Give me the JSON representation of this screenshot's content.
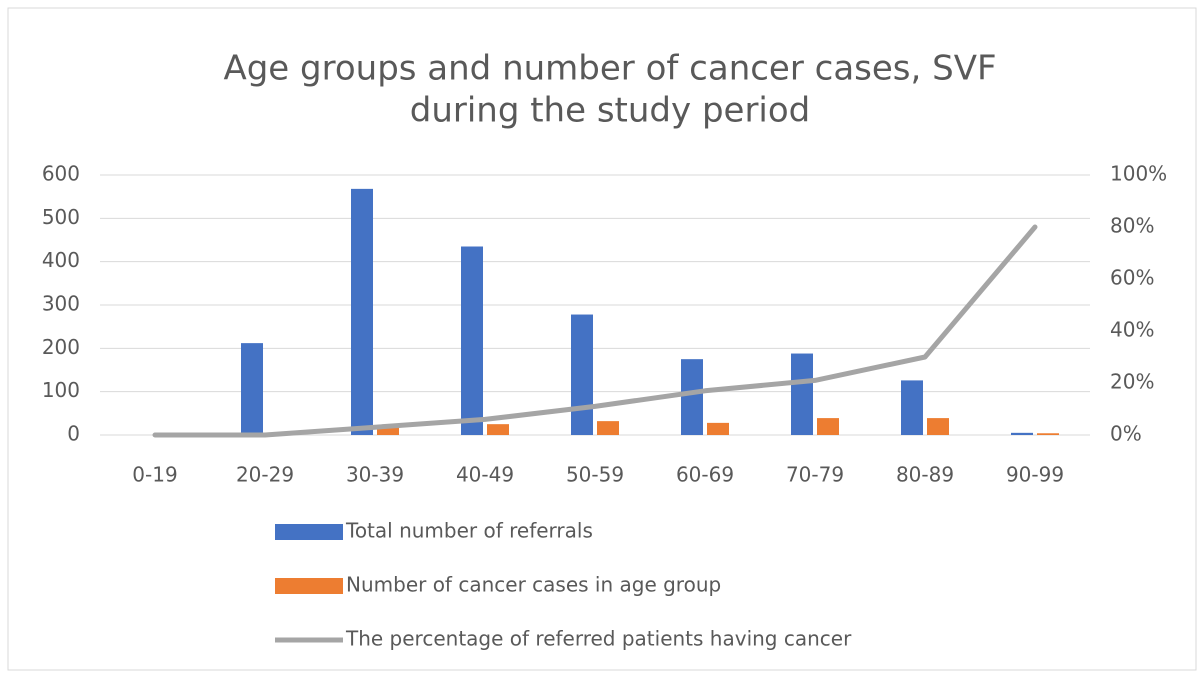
{
  "chart_data": {
    "type": "bar",
    "title": [
      "Age groups and number of cancer cases, SVF",
      "during the study period"
    ],
    "categories": [
      "0-19",
      "20-29",
      "30-39",
      "40-49",
      "50-59",
      "60-69",
      "70-79",
      "80-89",
      "90-99"
    ],
    "series": [
      {
        "name": "Total number of referrals",
        "color": "#4472c4",
        "type": "bar",
        "values": [
          0,
          212,
          568,
          435,
          278,
          175,
          188,
          126,
          5
        ]
      },
      {
        "name": "Number of cancer cases in age group",
        "color": "#ed7d31",
        "type": "bar",
        "values": [
          0,
          2,
          18,
          25,
          32,
          28,
          39,
          39,
          4
        ]
      },
      {
        "name": "The percentage of referred patients having cancer",
        "color": "#a5a5a5",
        "type": "line",
        "axis": "y2",
        "values": [
          0,
          0,
          3,
          6,
          11,
          17,
          21,
          30,
          80
        ]
      }
    ],
    "ylim": [
      0,
      600
    ],
    "yticks": [
      0,
      100,
      200,
      300,
      400,
      500,
      600
    ],
    "y2lim": [
      0,
      100
    ],
    "y2ticks": [
      {
        "value": 0,
        "label": "0%"
      },
      {
        "value": 20,
        "label": "20%"
      },
      {
        "value": 40,
        "label": "40%"
      },
      {
        "value": 60,
        "label": "60%"
      },
      {
        "value": 80,
        "label": "80%"
      },
      {
        "value": 100,
        "label": "100%"
      }
    ],
    "grid": true,
    "legend": "bottom"
  }
}
